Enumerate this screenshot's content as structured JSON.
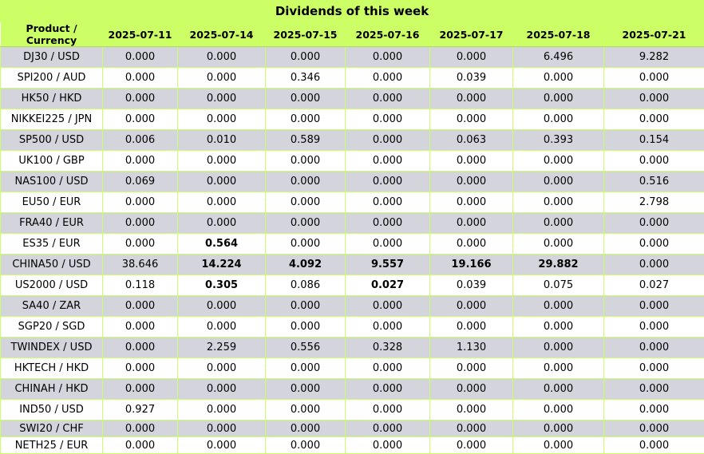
{
  "title": "Dividends of this week",
  "header": {
    "product": "Product / Currency",
    "dates": [
      "2025-07-11",
      "2025-07-14",
      "2025-07-15",
      "2025-07-16",
      "2025-07-17",
      "2025-07-18",
      "2025-07-21"
    ]
  },
  "rows": [
    {
      "product": "DJ30 / USD",
      "values": [
        "0.000",
        "0.000",
        "0.000",
        "0.000",
        "0.000",
        "6.496",
        "9.282"
      ],
      "bold": []
    },
    {
      "product": "SPI200 / AUD",
      "values": [
        "0.000",
        "0.000",
        "0.346",
        "0.000",
        "0.039",
        "0.000",
        "0.000"
      ],
      "bold": []
    },
    {
      "product": "HK50 / HKD",
      "values": [
        "0.000",
        "0.000",
        "0.000",
        "0.000",
        "0.000",
        "0.000",
        "0.000"
      ],
      "bold": []
    },
    {
      "product": "NIKKEI225 / JPN",
      "values": [
        "0.000",
        "0.000",
        "0.000",
        "0.000",
        "0.000",
        "0.000",
        "0.000"
      ],
      "bold": []
    },
    {
      "product": "SP500 / USD",
      "values": [
        "0.006",
        "0.010",
        "0.589",
        "0.000",
        "0.063",
        "0.393",
        "0.154"
      ],
      "bold": []
    },
    {
      "product": "UK100 / GBP",
      "values": [
        "0.000",
        "0.000",
        "0.000",
        "0.000",
        "0.000",
        "0.000",
        "0.000"
      ],
      "bold": []
    },
    {
      "product": "NAS100 / USD",
      "values": [
        "0.069",
        "0.000",
        "0.000",
        "0.000",
        "0.000",
        "0.000",
        "0.516"
      ],
      "bold": []
    },
    {
      "product": "EU50 / EUR",
      "values": [
        "0.000",
        "0.000",
        "0.000",
        "0.000",
        "0.000",
        "0.000",
        "2.798"
      ],
      "bold": []
    },
    {
      "product": "FRA40 / EUR",
      "values": [
        "0.000",
        "0.000",
        "0.000",
        "0.000",
        "0.000",
        "0.000",
        "0.000"
      ],
      "bold": []
    },
    {
      "product": "ES35 / EUR",
      "values": [
        "0.000",
        "0.564",
        "0.000",
        "0.000",
        "0.000",
        "0.000",
        "0.000"
      ],
      "bold": [
        1
      ]
    },
    {
      "product": "CHINA50 / USD",
      "values": [
        "38.646",
        "14.224",
        "4.092",
        "9.557",
        "19.166",
        "29.882",
        "0.000"
      ],
      "bold": [
        1,
        2,
        3,
        4,
        5
      ]
    },
    {
      "product": "US2000 / USD",
      "values": [
        "0.118",
        "0.305",
        "0.086",
        "0.027",
        "0.039",
        "0.075",
        "0.027"
      ],
      "bold": [
        1,
        3
      ]
    },
    {
      "product": "SA40 / ZAR",
      "values": [
        "0.000",
        "0.000",
        "0.000",
        "0.000",
        "0.000",
        "0.000",
        "0.000"
      ],
      "bold": []
    },
    {
      "product": "SGP20 / SGD",
      "values": [
        "0.000",
        "0.000",
        "0.000",
        "0.000",
        "0.000",
        "0.000",
        "0.000"
      ],
      "bold": []
    },
    {
      "product": "TWINDEX / USD",
      "values": [
        "0.000",
        "2.259",
        "0.556",
        "0.328",
        "1.130",
        "0.000",
        "0.000"
      ],
      "bold": []
    },
    {
      "product": "HKTECH / HKD",
      "values": [
        "0.000",
        "0.000",
        "0.000",
        "0.000",
        "0.000",
        "0.000",
        "0.000"
      ],
      "bold": []
    },
    {
      "product": "CHINAH / HKD",
      "values": [
        "0.000",
        "0.000",
        "0.000",
        "0.000",
        "0.000",
        "0.000",
        "0.000"
      ],
      "bold": []
    },
    {
      "product": "IND50 / USD",
      "values": [
        "0.927",
        "0.000",
        "0.000",
        "0.000",
        "0.000",
        "0.000",
        "0.000"
      ],
      "bold": []
    },
    {
      "product": "SWI20 / CHF",
      "values": [
        "0.000",
        "0.000",
        "0.000",
        "0.000",
        "0.000",
        "0.000",
        "0.000"
      ],
      "bold": []
    },
    {
      "product": "NETH25 / EUR",
      "values": [
        "0.000",
        "0.000",
        "0.000",
        "0.000",
        "0.000",
        "0.000",
        "0.000"
      ],
      "bold": []
    }
  ]
}
